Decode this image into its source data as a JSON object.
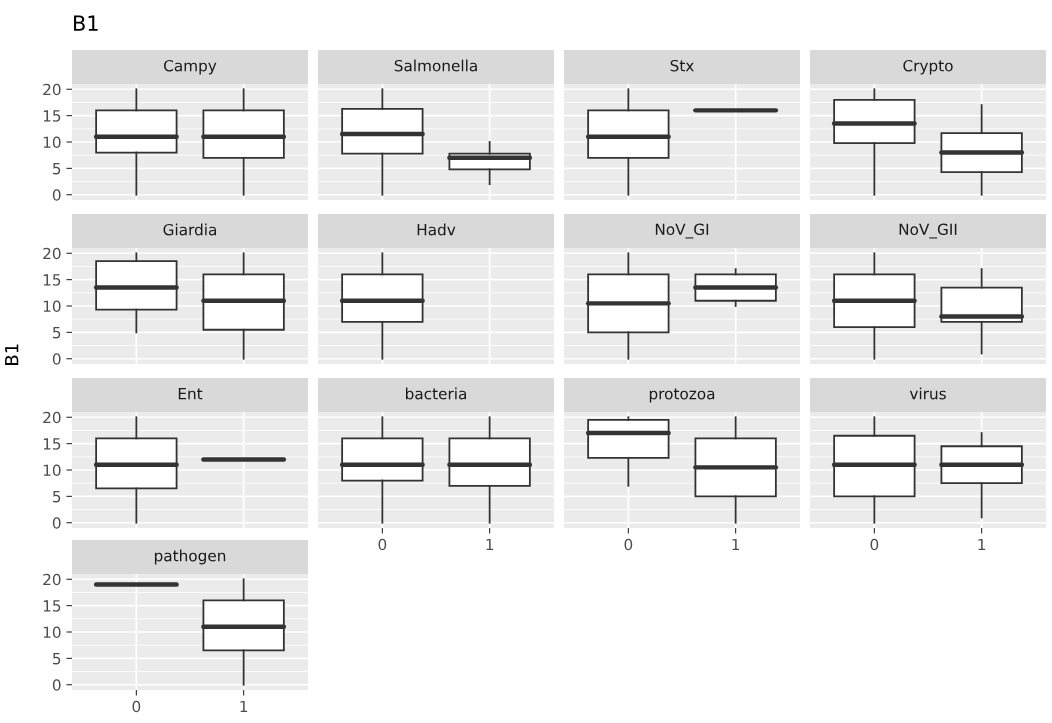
{
  "chart_data": [
    {
      "type": "box",
      "title": "Campy",
      "annotations": [
        "B1"
      ],
      "categories": [
        "0",
        "1"
      ],
      "ylim": [
        -1,
        21
      ],
      "yticks": [
        0,
        5,
        10,
        15,
        20
      ],
      "grid": true,
      "tick_labels": "y",
      "boxes": [
        {
          "low": 0,
          "q1": 8,
          "median": 11,
          "q3": 16,
          "high": 20
        },
        {
          "low": 0,
          "q1": 7,
          "median": 11,
          "q3": 16,
          "high": 20
        }
      ]
    },
    {
      "type": "box",
      "title": "Salmonella",
      "categories": [
        "0",
        "1"
      ],
      "ylim": [
        -1,
        21
      ],
      "yticks": [
        0,
        5,
        10,
        15,
        20
      ],
      "grid": true,
      "tick_labels": false,
      "boxes": [
        {
          "low": 0,
          "q1": 7.8,
          "median": 11.5,
          "q3": 16.3,
          "high": 20
        },
        {
          "low": 2,
          "q1": 4.8,
          "median": 7,
          "q3": 7.8,
          "high": 10
        }
      ]
    },
    {
      "type": "box",
      "title": "Stx",
      "categories": [
        "0",
        "1"
      ],
      "ylim": [
        -1,
        21
      ],
      "yticks": [
        0,
        5,
        10,
        15,
        20
      ],
      "grid": true,
      "tick_labels": false,
      "boxes": [
        {
          "low": 0,
          "q1": 7,
          "median": 11,
          "q3": 16,
          "high": 20
        },
        {
          "low": 16,
          "q1": 16,
          "median": 16,
          "q3": 16,
          "high": 16
        }
      ]
    },
    {
      "type": "box",
      "title": "Crypto",
      "categories": [
        "0",
        "1"
      ],
      "ylim": [
        -1,
        21
      ],
      "yticks": [
        0,
        5,
        10,
        15,
        20
      ],
      "grid": true,
      "tick_labels": false,
      "boxes": [
        {
          "low": 0,
          "q1": 9.8,
          "median": 13.5,
          "q3": 18,
          "high": 20
        },
        {
          "low": 0,
          "q1": 4.3,
          "median": 8,
          "q3": 11.7,
          "high": 17
        }
      ]
    },
    {
      "type": "box",
      "title": "Giardia",
      "ylabel": "B1",
      "categories": [
        "0",
        "1"
      ],
      "ylim": [
        -1,
        21
      ],
      "yticks": [
        0,
        5,
        10,
        15,
        20
      ],
      "grid": true,
      "tick_labels": "y",
      "boxes": [
        {
          "low": 5,
          "q1": 9.3,
          "median": 13.5,
          "q3": 18.5,
          "high": 20
        },
        {
          "low": 0,
          "q1": 5.5,
          "median": 11,
          "q3": 16,
          "high": 20
        }
      ]
    },
    {
      "type": "box",
      "title": "Hadv",
      "categories": [
        "0",
        "1"
      ],
      "ylim": [
        -1,
        21
      ],
      "yticks": [
        0,
        5,
        10,
        15,
        20
      ],
      "grid": true,
      "tick_labels": false,
      "boxes": [
        {
          "low": 0,
          "q1": 7,
          "median": 11,
          "q3": 16,
          "high": 20
        },
        null
      ]
    },
    {
      "type": "box",
      "title": "NoV_GI",
      "categories": [
        "0",
        "1"
      ],
      "ylim": [
        -1,
        21
      ],
      "yticks": [
        0,
        5,
        10,
        15,
        20
      ],
      "grid": true,
      "tick_labels": false,
      "boxes": [
        {
          "low": 0,
          "q1": 5,
          "median": 10.5,
          "q3": 16,
          "high": 20
        },
        {
          "low": 10,
          "q1": 11,
          "median": 13.5,
          "q3": 16,
          "high": 17
        }
      ]
    },
    {
      "type": "box",
      "title": "NoV_GII",
      "categories": [
        "0",
        "1"
      ],
      "ylim": [
        -1,
        21
      ],
      "yticks": [
        0,
        5,
        10,
        15,
        20
      ],
      "grid": true,
      "tick_labels": false,
      "boxes": [
        {
          "low": 0,
          "q1": 6,
          "median": 11,
          "q3": 16,
          "high": 20
        },
        {
          "low": 1,
          "q1": 7,
          "median": 8,
          "q3": 13.5,
          "high": 17
        }
      ]
    },
    {
      "type": "box",
      "title": "Ent",
      "categories": [
        "0",
        "1"
      ],
      "ylim": [
        -1,
        21
      ],
      "yticks": [
        0,
        5,
        10,
        15,
        20
      ],
      "grid": true,
      "tick_labels": "y",
      "boxes": [
        {
          "low": 0,
          "q1": 6.5,
          "median": 11,
          "q3": 16,
          "high": 20
        },
        {
          "low": 12,
          "q1": 12,
          "median": 12,
          "q3": 12,
          "high": 12
        }
      ]
    },
    {
      "type": "box",
      "title": "bacteria",
      "categories": [
        "0",
        "1"
      ],
      "ylim": [
        -1,
        21
      ],
      "yticks": [
        0,
        5,
        10,
        15,
        20
      ],
      "grid": true,
      "tick_labels": "x",
      "boxes": [
        {
          "low": 0,
          "q1": 8,
          "median": 11,
          "q3": 16,
          "high": 20
        },
        {
          "low": 0,
          "q1": 7,
          "median": 11,
          "q3": 16,
          "high": 20
        }
      ]
    },
    {
      "type": "box",
      "title": "protozoa",
      "categories": [
        "0",
        "1"
      ],
      "ylim": [
        -1,
        21
      ],
      "yticks": [
        0,
        5,
        10,
        15,
        20
      ],
      "grid": true,
      "tick_labels": "x",
      "boxes": [
        {
          "low": 7,
          "q1": 12.3,
          "median": 17,
          "q3": 19.5,
          "high": 20
        },
        {
          "low": 0,
          "q1": 5,
          "median": 10.5,
          "q3": 16,
          "high": 20
        }
      ]
    },
    {
      "type": "box",
      "title": "virus",
      "categories": [
        "0",
        "1"
      ],
      "ylim": [
        -1,
        21
      ],
      "yticks": [
        0,
        5,
        10,
        15,
        20
      ],
      "grid": true,
      "tick_labels": "x",
      "boxes": [
        {
          "low": 0,
          "q1": 5,
          "median": 11,
          "q3": 16.5,
          "high": 20
        },
        {
          "low": 1,
          "q1": 7.5,
          "median": 11,
          "q3": 14.5,
          "high": 17
        }
      ]
    },
    {
      "type": "box",
      "title": "pathogen",
      "categories": [
        "0",
        "1"
      ],
      "ylim": [
        -1,
        21
      ],
      "yticks": [
        0,
        5,
        10,
        15,
        20
      ],
      "grid": true,
      "boxes": [
        {
          "low": 19,
          "q1": 19,
          "median": 19,
          "q3": 19,
          "high": 19
        },
        {
          "low": 0,
          "q1": 6.5,
          "median": 11,
          "q3": 16,
          "high": 20
        }
      ]
    }
  ]
}
